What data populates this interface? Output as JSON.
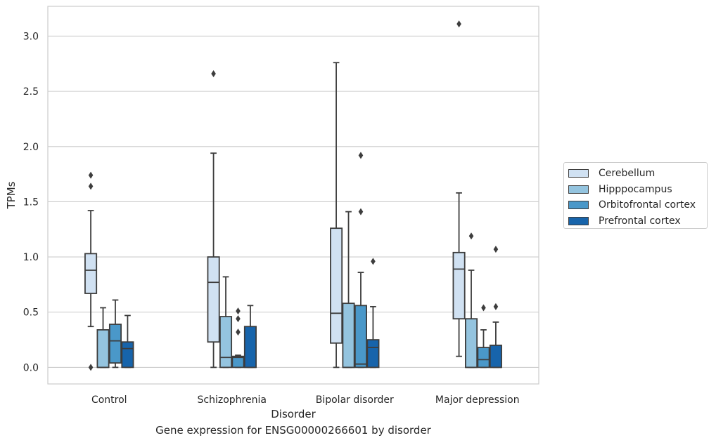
{
  "chart_data": {
    "type": "box",
    "caption": "Gene expression for ENSG00000266601 by disorder",
    "xlabel": "Disorder",
    "ylabel": "TPMs",
    "ylim": [
      -0.15,
      3.27
    ],
    "yticks": [
      "0.0",
      "0.5",
      "1.0",
      "1.5",
      "2.0",
      "2.5",
      "3.0"
    ],
    "ytick_values": [
      0,
      0.5,
      1.0,
      1.5,
      2.0,
      2.5,
      3.0
    ],
    "categories": [
      "Control",
      "Schizophrenia",
      "Bipolar disorder",
      "Major depression"
    ],
    "grid": "horizontal",
    "legend_position": "right",
    "series": [
      {
        "name": "Cerebellum",
        "color": "#d0e1f2",
        "boxes": [
          {
            "whisker_low": 0.37,
            "q1": 0.67,
            "median": 0.88,
            "q3": 1.03,
            "whisker_high": 1.42,
            "outliers": [
              1.74,
              1.64,
              0.0
            ]
          },
          {
            "whisker_low": 0.0,
            "q1": 0.23,
            "median": 0.77,
            "q3": 1.0,
            "whisker_high": 1.94,
            "outliers": [
              2.66
            ]
          },
          {
            "whisker_low": 0.0,
            "q1": 0.22,
            "median": 0.49,
            "q3": 1.26,
            "whisker_high": 2.76,
            "outliers": []
          },
          {
            "whisker_low": 0.1,
            "q1": 0.44,
            "median": 0.89,
            "q3": 1.04,
            "whisker_high": 1.58,
            "outliers": [
              3.11
            ]
          }
        ]
      },
      {
        "name": "Hipppocampus",
        "color": "#94c4df",
        "boxes": [
          {
            "whisker_low": 0.0,
            "q1": 0.0,
            "median": 0.0,
            "q3": 0.34,
            "whisker_high": 0.54,
            "outliers": []
          },
          {
            "whisker_low": 0.0,
            "q1": 0.0,
            "median": 0.09,
            "q3": 0.46,
            "whisker_high": 0.82,
            "outliers": []
          },
          {
            "whisker_low": 0.0,
            "q1": 0.0,
            "median": 0.0,
            "q3": 0.58,
            "whisker_high": 1.41,
            "outliers": []
          },
          {
            "whisker_low": 0.0,
            "q1": 0.0,
            "median": 0.0,
            "q3": 0.44,
            "whisker_high": 0.88,
            "outliers": [
              1.19
            ]
          }
        ]
      },
      {
        "name": "Orbitofrontal cortex",
        "color": "#4a98c9",
        "boxes": [
          {
            "whisker_low": 0.0,
            "q1": 0.04,
            "median": 0.24,
            "q3": 0.39,
            "whisker_high": 0.61,
            "outliers": []
          },
          {
            "whisker_low": 0.0,
            "q1": 0.0,
            "median": 0.09,
            "q3": 0.1,
            "whisker_high": 0.11,
            "outliers": [
              0.51,
              0.44,
              0.32
            ]
          },
          {
            "whisker_low": 0.0,
            "q1": 0.0,
            "median": 0.03,
            "q3": 0.56,
            "whisker_high": 0.86,
            "outliers": [
              1.92,
              1.41
            ]
          },
          {
            "whisker_low": 0.0,
            "q1": 0.0,
            "median": 0.07,
            "q3": 0.18,
            "whisker_high": 0.34,
            "outliers": [
              0.54
            ]
          }
        ]
      },
      {
        "name": "Prefrontal cortex",
        "color": "#1764ab",
        "boxes": [
          {
            "whisker_low": 0.0,
            "q1": 0.0,
            "median": 0.17,
            "q3": 0.23,
            "whisker_high": 0.47,
            "outliers": []
          },
          {
            "whisker_low": 0.0,
            "q1": 0.0,
            "median": 0.0,
            "q3": 0.37,
            "whisker_high": 0.56,
            "outliers": []
          },
          {
            "whisker_low": 0.0,
            "q1": 0.0,
            "median": 0.18,
            "q3": 0.25,
            "whisker_high": 0.55,
            "outliers": [
              0.96
            ]
          },
          {
            "whisker_low": 0.0,
            "q1": 0.0,
            "median": 0.0,
            "q3": 0.2,
            "whisker_high": 0.41,
            "outliers": [
              1.07,
              0.55
            ]
          }
        ]
      }
    ]
  }
}
